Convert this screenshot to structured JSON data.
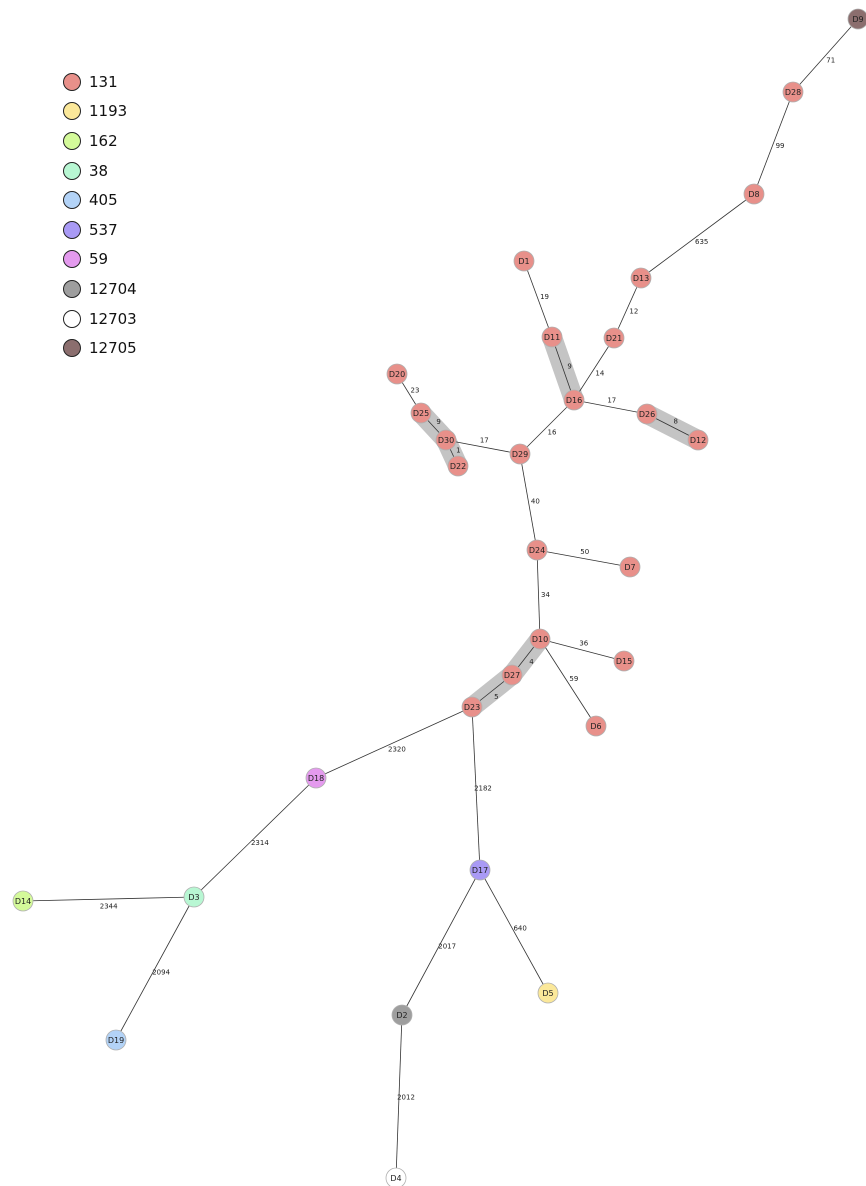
{
  "legend": [
    {
      "label": "131",
      "color": "#E8908A"
    },
    {
      "label": "1193",
      "color": "#FBE89A"
    },
    {
      "label": "162",
      "color": "#D4FA9A"
    },
    {
      "label": "38",
      "color": "#B8F7D3"
    },
    {
      "label": "405",
      "color": "#B3D3F7"
    },
    {
      "label": "537",
      "color": "#A99AF5"
    },
    {
      "label": "59",
      "color": "#E49AEE"
    },
    {
      "label": "12704",
      "color": "#9E9E9E"
    },
    {
      "label": "12703",
      "color": "#FFFFFF"
    },
    {
      "label": "12705",
      "color": "#8B6E6E"
    }
  ],
  "nodes": [
    {
      "id": "D1",
      "group": "131"
    },
    {
      "id": "D2",
      "group": "12704"
    },
    {
      "id": "D3",
      "group": "38"
    },
    {
      "id": "D4",
      "group": "12703"
    },
    {
      "id": "D5",
      "group": "1193"
    },
    {
      "id": "D6",
      "group": "131"
    },
    {
      "id": "D7",
      "group": "131"
    },
    {
      "id": "D8",
      "group": "131"
    },
    {
      "id": "D9",
      "group": "12705"
    },
    {
      "id": "D10",
      "group": "131"
    },
    {
      "id": "D11",
      "group": "131"
    },
    {
      "id": "D12",
      "group": "131"
    },
    {
      "id": "D13",
      "group": "131"
    },
    {
      "id": "D14",
      "group": "162"
    },
    {
      "id": "D15",
      "group": "131"
    },
    {
      "id": "D16",
      "group": "131"
    },
    {
      "id": "D17",
      "group": "537"
    },
    {
      "id": "D18",
      "group": "59"
    },
    {
      "id": "D19",
      "group": "405"
    },
    {
      "id": "D20",
      "group": "131"
    },
    {
      "id": "D21",
      "group": "131"
    },
    {
      "id": "D22",
      "group": "131"
    },
    {
      "id": "D23",
      "group": "131"
    },
    {
      "id": "D24",
      "group": "131"
    },
    {
      "id": "D25",
      "group": "131"
    },
    {
      "id": "D26",
      "group": "131"
    },
    {
      "id": "D27",
      "group": "131"
    },
    {
      "id": "D28",
      "group": "131"
    },
    {
      "id": "D29",
      "group": "131"
    },
    {
      "id": "D30",
      "group": "131"
    }
  ],
  "edges": [
    {
      "source": "D9",
      "target": "D28",
      "label": "71"
    },
    {
      "source": "D28",
      "target": "D8",
      "label": "99"
    },
    {
      "source": "D8",
      "target": "D13",
      "label": "635"
    },
    {
      "source": "D13",
      "target": "D21",
      "label": "12"
    },
    {
      "source": "D21",
      "target": "D16",
      "label": "14"
    },
    {
      "source": "D1",
      "target": "D11",
      "label": "19"
    },
    {
      "source": "D11",
      "target": "D16",
      "label": "9",
      "highlight": true
    },
    {
      "source": "D16",
      "target": "D26",
      "label": "17"
    },
    {
      "source": "D26",
      "target": "D12",
      "label": "8",
      "highlight": true
    },
    {
      "source": "D16",
      "target": "D29",
      "label": "16"
    },
    {
      "source": "D20",
      "target": "D25",
      "label": "23"
    },
    {
      "source": "D25",
      "target": "D30",
      "label": "9",
      "highlight": true
    },
    {
      "source": "D30",
      "target": "D22",
      "label": "1",
      "highlight": true
    },
    {
      "source": "D30",
      "target": "D29",
      "label": "17"
    },
    {
      "source": "D29",
      "target": "D24",
      "label": "40"
    },
    {
      "source": "D24",
      "target": "D7",
      "label": "50"
    },
    {
      "source": "D24",
      "target": "D10",
      "label": "34"
    },
    {
      "source": "D10",
      "target": "D15",
      "label": "36"
    },
    {
      "source": "D10",
      "target": "D6",
      "label": "59"
    },
    {
      "source": "D10",
      "target": "D27",
      "label": "4",
      "highlight": true
    },
    {
      "source": "D27",
      "target": "D23",
      "label": "5",
      "highlight": true
    },
    {
      "source": "D23",
      "target": "D18",
      "label": "2320"
    },
    {
      "source": "D23",
      "target": "D17",
      "label": "2182"
    },
    {
      "source": "D18",
      "target": "D3",
      "label": "2314"
    },
    {
      "source": "D3",
      "target": "D14",
      "label": "2344"
    },
    {
      "source": "D3",
      "target": "D19",
      "label": "2094"
    },
    {
      "source": "D17",
      "target": "D2",
      "label": "2017"
    },
    {
      "source": "D17",
      "target": "D5",
      "label": "640"
    },
    {
      "source": "D2",
      "target": "D4",
      "label": "2012"
    }
  ]
}
